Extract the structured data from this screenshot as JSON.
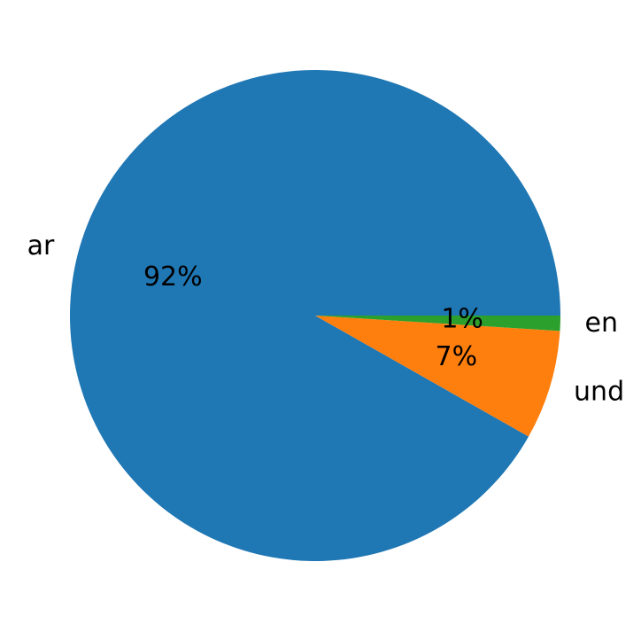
{
  "chart_data": {
    "type": "pie",
    "labels": [
      "ar",
      "und",
      "en"
    ],
    "values": [
      91.8,
      7.2,
      1.0
    ],
    "pct_labels": [
      "92%",
      "7%",
      "1%"
    ],
    "colors": [
      "#1f77b4",
      "#ff7f0e",
      "#2ca02c"
    ],
    "start_angle_deg": 0,
    "direction": "counterclockwise",
    "legend": "none"
  }
}
